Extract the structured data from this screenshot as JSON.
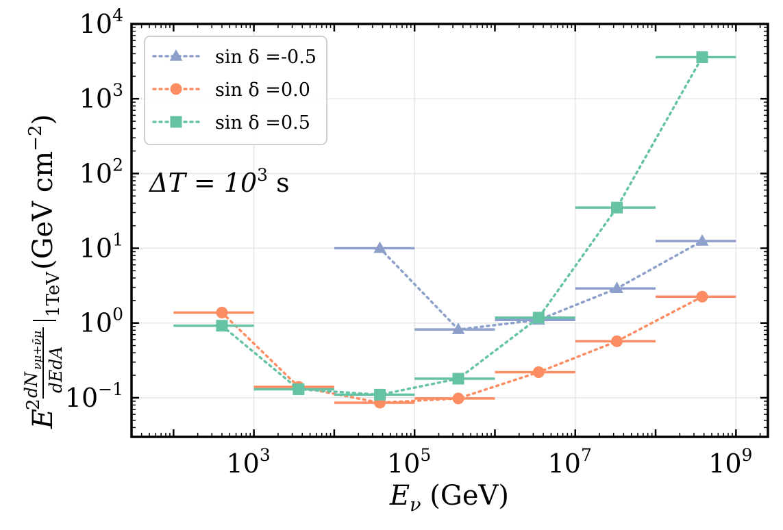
{
  "chart_data": {
    "type": "line",
    "xscale": "log",
    "yscale": "log",
    "xlim": [
      30,
      2500000000
    ],
    "ylim": [
      0.03,
      10000
    ],
    "xlabel": {
      "base": "E",
      "sub": "ν",
      "unit": " (GeV)"
    },
    "ylabel": {
      "main": "E",
      "sup": "2",
      "frac_num": "dN",
      "frac_num_sub": "νμ+ν̄μ",
      "frac_den": "dEdA",
      "eval_sub": "1TeV",
      "unit": " (GeV cm",
      "unit_exp": "−2",
      "unit_close": ")"
    },
    "annotation": {
      "lhs": "ΔT = 10",
      "exp": "3",
      "unit": " s"
    },
    "legend_position": "upper-left",
    "x_major_ticks": [
      {
        "value": 1000,
        "base": "10",
        "exp": "3"
      },
      {
        "value": 100000,
        "base": "10",
        "exp": "5"
      },
      {
        "value": 10000000,
        "base": "10",
        "exp": "7"
      },
      {
        "value": 1000000000,
        "base": "10",
        "exp": "9"
      }
    ],
    "y_major_ticks": [
      {
        "value": 0.1,
        "base": "10",
        "exp": "−1"
      },
      {
        "value": 1,
        "base": "10",
        "exp": "0"
      },
      {
        "value": 10,
        "base": "10",
        "exp": "1"
      },
      {
        "value": 100,
        "base": "10",
        "exp": "2"
      },
      {
        "value": 1000,
        "base": "10",
        "exp": "3"
      },
      {
        "value": 10000,
        "base": "10",
        "exp": "4"
      }
    ],
    "bins": [
      [
        100,
        1000
      ],
      [
        1000,
        10000
      ],
      [
        10000,
        100000
      ],
      [
        100000,
        1000000
      ],
      [
        1000000,
        10000000
      ],
      [
        10000000,
        100000000
      ],
      [
        100000000,
        1000000000
      ]
    ],
    "x_centers": [
      400,
      3600,
      37000,
      350000,
      3500000,
      33000000,
      380000000
    ],
    "series": [
      {
        "name": "sin δ =-0.5",
        "legend_prefix": "sin δ =",
        "legend_value": "-0.5",
        "color": "#8da0cb",
        "marker": "triangle",
        "values": [
          null,
          null,
          10.0,
          0.82,
          1.1,
          2.9,
          12.5
        ],
        "first_bin": 2
      },
      {
        "name": "sin δ =0.0",
        "legend_prefix": "sin δ =",
        "legend_value": "0.0",
        "color": "#fc8d62",
        "marker": "circle",
        "values": [
          1.38,
          0.14,
          0.086,
          0.098,
          0.22,
          0.57,
          2.25
        ],
        "first_bin": 0
      },
      {
        "name": "sin δ =0.5",
        "legend_prefix": "sin δ =",
        "legend_value": "0.5",
        "color": "#66c2a5",
        "marker": "square",
        "values": [
          0.92,
          0.13,
          0.11,
          0.18,
          1.18,
          35,
          3600
        ],
        "first_bin": 0
      }
    ],
    "grid": true
  }
}
